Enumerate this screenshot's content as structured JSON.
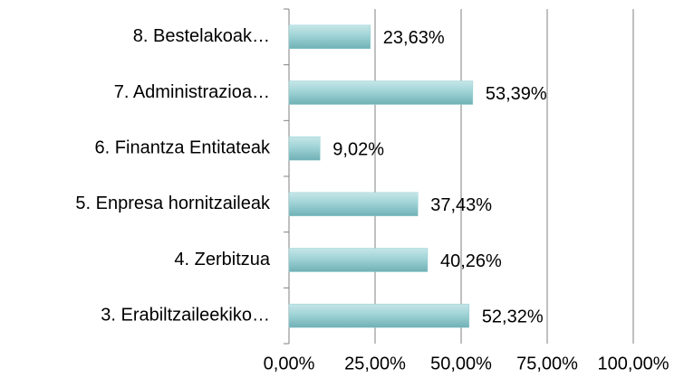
{
  "chart_data": {
    "type": "bar",
    "orientation": "horizontal",
    "categories": [
      "8. Bestelakoak…",
      "7. Administrazioa…",
      "6. Finantza Entitateak",
      "5. Enpresa hornitzaileak",
      "4. Zerbitzua",
      "3. Erabiltzaileekiko…"
    ],
    "values": [
      23.63,
      53.39,
      9.02,
      37.43,
      40.26,
      52.32
    ],
    "value_labels": [
      "23,63%",
      "53,39%",
      "9,02%",
      "37,43%",
      "40,26%",
      "52,32%"
    ],
    "color": "#93cdd1",
    "xlim": [
      0,
      100
    ],
    "xticks": [
      {
        "value": 0,
        "label": "0,00%"
      },
      {
        "value": 25,
        "label": "25,00%"
      },
      {
        "value": 50,
        "label": "50,00%"
      },
      {
        "value": 75,
        "label": "75,00%"
      },
      {
        "value": 100,
        "label": "100,00%"
      }
    ],
    "grid": true
  }
}
